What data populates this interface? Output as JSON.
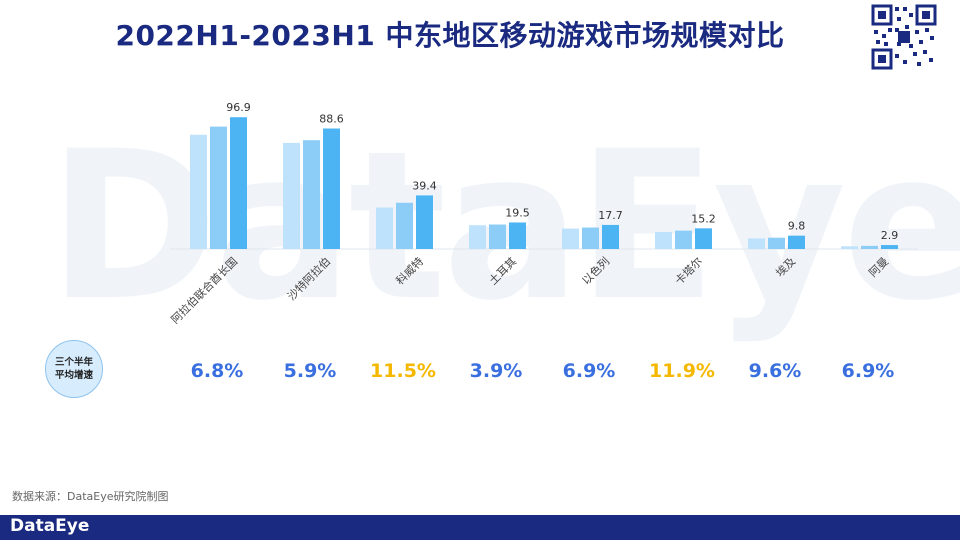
{
  "title": "2022H1-2023H1 中东地区移动游戏市场规模对比",
  "watermark": "DataEye",
  "colors": {
    "series1": "#bfe2fc",
    "series2": "#8ccdf8",
    "series3": "#4db4f3",
    "accent_title": "#1a2a80",
    "growth_blue": "#3a6fe0",
    "growth_gold": "#f5b800"
  },
  "chart_data": {
    "type": "bar",
    "categories": [
      "阿拉伯联合酋长国",
      "沙特阿拉伯",
      "科威特",
      "土耳其",
      "以色列",
      "卡塔尔",
      "埃及",
      "阿曼"
    ],
    "series": [
      {
        "values": [
          84.0,
          78.0,
          30.5,
          17.5,
          15.0,
          12.5,
          7.8,
          2.0
        ]
      },
      {
        "values": [
          90.0,
          80.0,
          34.0,
          18.0,
          15.8,
          13.5,
          8.3,
          2.3
        ]
      },
      {
        "values": [
          96.9,
          88.6,
          39.4,
          19.5,
          17.7,
          15.2,
          9.8,
          2.9
        ]
      }
    ],
    "data_labels": [
      "96.9",
      "88.6",
      "39.4",
      "19.5",
      "17.7",
      "15.2",
      "9.8",
      "2.9"
    ],
    "ylim": [
      0,
      100
    ]
  },
  "growth": {
    "label_line1": "三个半年",
    "label_line2": "平均增速",
    "values": [
      {
        "text": "6.8%",
        "highlight": false
      },
      {
        "text": "5.9%",
        "highlight": false
      },
      {
        "text": "11.5%",
        "highlight": true
      },
      {
        "text": "3.9%",
        "highlight": false
      },
      {
        "text": "6.9%",
        "highlight": false
      },
      {
        "text": "11.9%",
        "highlight": true
      },
      {
        "text": "9.6%",
        "highlight": false
      },
      {
        "text": "6.9%",
        "highlight": false
      }
    ]
  },
  "source": "数据来源：DataEye研究院制图",
  "footer_brand": "DataEye"
}
